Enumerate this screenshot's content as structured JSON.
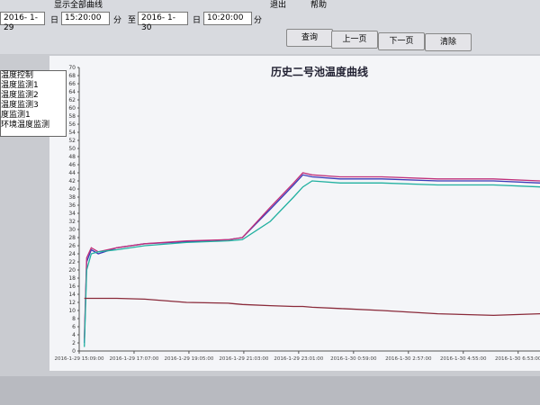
{
  "toolbar": {
    "start_date": "2016- 1-29",
    "day1": "日",
    "start_time": "15:20:00",
    "min1": "分",
    "to": "至",
    "end_date": "2016- 1-30",
    "day2": "日",
    "end_time": "10:20:00",
    "min2": "分",
    "show_all": "显示全部曲线",
    "menu": [
      "退出",
      "帮助"
    ],
    "buttons": [
      "查询",
      "上一页",
      "下一页",
      "清除"
    ]
  },
  "legend": [
    "温度控制",
    "温度监测1",
    "温度监测2",
    "温度监测3",
    "度监测1",
    "环境温度监测"
  ],
  "chart_data": {
    "type": "line",
    "title": "历史二号池温度曲线",
    "x": [
      "2016-1-29 15:20:00",
      "2016-1-29 15:25:00",
      "2016-1-29 15:35:00",
      "2016-1-29 15:50:00",
      "2016-1-29 16:30:00",
      "2016-1-29 17:30:00",
      "2016-1-29 19:00:00",
      "2016-1-29 20:30:00",
      "2016-1-29 21:00:00",
      "2016-1-29 22:00:00",
      "2016-1-29 22:50:00",
      "2016-1-29 23:10:00",
      "2016-1-29 23:30:00",
      "2016-1-30 0:30:00",
      "2016-1-30 2:00:00",
      "2016-1-30 4:00:00",
      "2016-1-30 6:00:00",
      "2016-1-30 7:40:00"
    ],
    "series": [
      {
        "color": "#3a3ab8",
        "values": [
          2,
          22,
          25,
          24,
          25.5,
          26.5,
          27,
          27.5,
          28,
          35,
          41,
          43.5,
          43,
          42.5,
          42.5,
          42,
          42,
          41.5
        ]
      },
      {
        "color": "#c0307a",
        "values": [
          3,
          23,
          25.5,
          24.5,
          25.5,
          26.5,
          27.2,
          27.5,
          28,
          35.5,
          41.5,
          44,
          43.5,
          43,
          43,
          42.5,
          42.5,
          42
        ]
      },
      {
        "color": "#20b0a0",
        "values": [
          1,
          20,
          24,
          24.5,
          25,
          26,
          26.8,
          27.2,
          27.5,
          32,
          38,
          40.5,
          42,
          41.5,
          41.5,
          41,
          41,
          40.5
        ]
      },
      {
        "color": "#8a2a3a",
        "values": [
          13,
          13,
          13,
          13,
          13,
          12.8,
          12,
          11.8,
          11.5,
          11.2,
          11,
          11,
          10.8,
          10.5,
          10,
          9.2,
          8.8,
          9.2
        ]
      }
    ],
    "xlim": [
      "2016-1-29 15:09:00",
      "2016-1-30 7:40:00"
    ],
    "xticks": [
      "2016-1-29 15:09:00",
      "2016-1-29 17:07:00",
      "2016-1-29 19:05:00",
      "2016-1-29 21:03:00",
      "2016-1-29 23:01:00",
      "2016-1-30 0:59:00",
      "2016-1-30 2:57:00",
      "2016-1-30 4:55:00",
      "2016-1-30 6:53:00"
    ],
    "ylim": [
      0,
      70
    ],
    "yticks": [
      0,
      2,
      4,
      6,
      8,
      10,
      12,
      14,
      16,
      18,
      20,
      22,
      24,
      26,
      28,
      30,
      32,
      34,
      36,
      38,
      40,
      42,
      44,
      46,
      48,
      50,
      52,
      54,
      56,
      58,
      60,
      62,
      64,
      66,
      68,
      70
    ],
    "grid": false
  }
}
